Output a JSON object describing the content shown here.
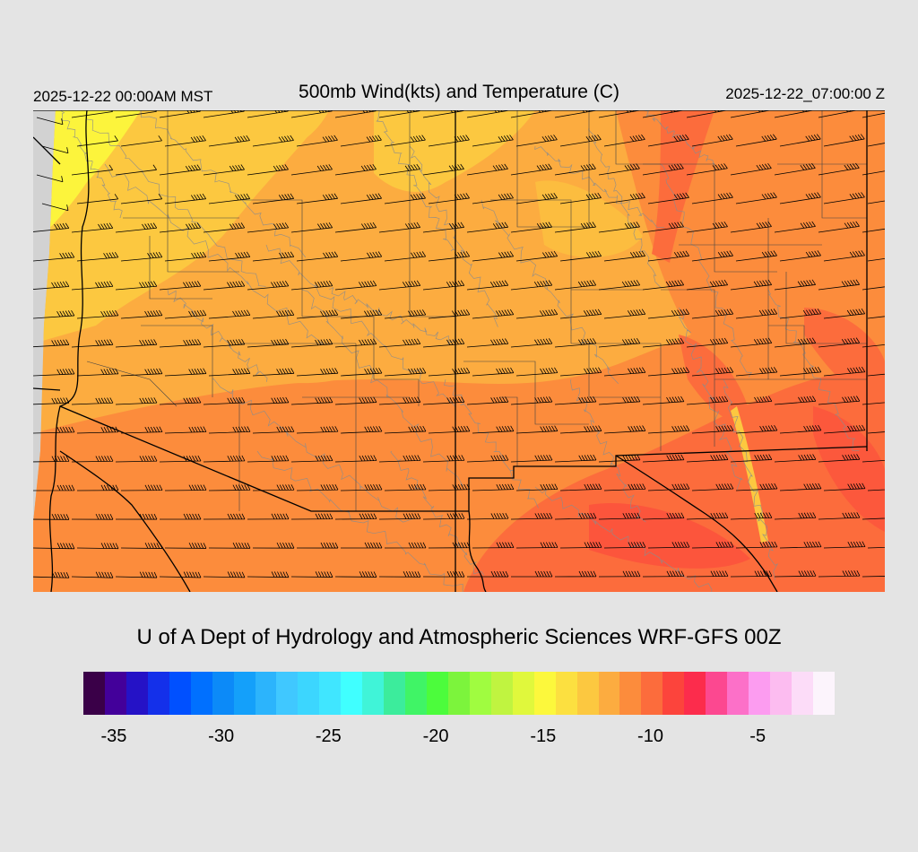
{
  "header": {
    "local_time": "2025-12-22 00:00AM MST",
    "title": "500mb Wind(kts) and Temperature (C)",
    "utc_time": "2025-12-22_07:00:00 Z"
  },
  "footer": {
    "credit": "U of A Dept of Hydrology and Atmospheric Sciences WRF-GFS 00Z"
  },
  "colorbar": {
    "colors": [
      "#3a0048",
      "#43009a",
      "#2512c6",
      "#1430ea",
      "#0050ff",
      "#0070ff",
      "#0c8af8",
      "#14a0fa",
      "#2cb4fc",
      "#40c8ff",
      "#3cd6fe",
      "#40e6ff",
      "#40ffff",
      "#40f4d8",
      "#3cec9c",
      "#40f466",
      "#4cfc3c",
      "#7cf43c",
      "#a0fc40",
      "#c0f440",
      "#e0f83c",
      "#fcf83c",
      "#fce040",
      "#fcc840",
      "#fcac40",
      "#fc8c3c",
      "#fc6c3c",
      "#fc443c",
      "#fc2c4c",
      "#fc4890",
      "#fc70c8",
      "#fc9cf0",
      "#fcbcf0",
      "#fcdcf8",
      "#fcf4fc"
    ],
    "tick_labels": [
      "-35",
      "-30",
      "-25",
      "-20",
      "-15",
      "-10",
      "-5"
    ],
    "tick_values": [
      -35,
      -30,
      -25,
      -20,
      -15,
      -10,
      -5
    ],
    "range": [
      -36,
      -1
    ]
  },
  "map": {
    "region": "Arizona / New Mexico / Northwest Mexico",
    "barb_color": "#000000",
    "boundary_color": "#000000",
    "county_color": "#444444",
    "terrain_contour_color": "#8c8c8c",
    "fill_colors": {
      "yellow": "#fcf83c",
      "light_orange": "#fcc840",
      "orange": "#fcac40",
      "dark_orange": "#fc8c3c",
      "red_orange": "#fc6c3c",
      "red": "#fc443c"
    },
    "nodata_color": "#d2d2d2"
  }
}
